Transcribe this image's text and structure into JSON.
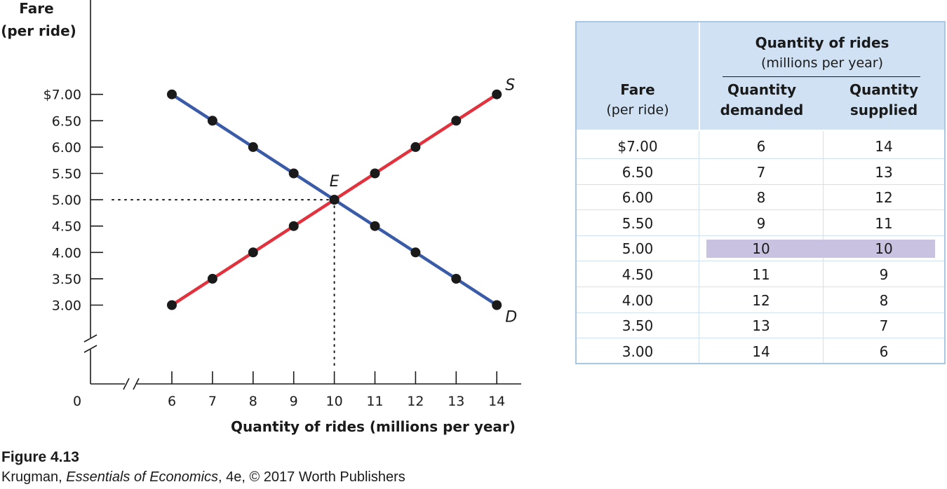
{
  "chart_data": {
    "type": "line",
    "ylabel": [
      "Fare",
      "(per ride)"
    ],
    "xlabel": "Quantity of rides (millions per year)",
    "origin_label": "0",
    "xlim": [
      6,
      14
    ],
    "ylim": [
      3,
      7
    ],
    "x_ticks": [
      6,
      7,
      8,
      9,
      10,
      11,
      12,
      13,
      14
    ],
    "x_tick_labels": [
      "6",
      "7",
      "8",
      "9",
      "10",
      "11",
      "12",
      "13",
      "14"
    ],
    "y_ticks": [
      7.0,
      6.5,
      6.0,
      5.5,
      5.0,
      4.5,
      4.0,
      3.5,
      3.0
    ],
    "y_tick_labels": [
      "$7.00",
      "6.50",
      "6.00",
      "5.50",
      "5.00",
      "4.50",
      "4.00",
      "3.50",
      "3.00"
    ],
    "axis_breaks": true,
    "series": [
      {
        "name": "D",
        "color": "#3a5ba8",
        "x": [
          6,
          7,
          8,
          9,
          10,
          11,
          12,
          13,
          14
        ],
        "y": [
          7.0,
          6.5,
          6.0,
          5.5,
          5.0,
          4.5,
          4.0,
          3.5,
          3.0
        ]
      },
      {
        "name": "S",
        "color": "#e2323e",
        "x": [
          6,
          7,
          8,
          9,
          10,
          11,
          12,
          13,
          14
        ],
        "y": [
          3.0,
          3.5,
          4.0,
          4.5,
          5.0,
          5.5,
          6.0,
          6.5,
          7.0
        ]
      }
    ],
    "equilibrium": {
      "label": "E",
      "x": 10,
      "y": 5.0
    }
  },
  "table": {
    "col1_header": [
      "Fare",
      "(per ride)"
    ],
    "group_header": [
      "Quantity of rides",
      "(millions per year)"
    ],
    "col2_header": [
      "Quantity",
      "demanded"
    ],
    "col3_header": [
      "Quantity",
      "supplied"
    ],
    "highlight_row": 4,
    "rows": [
      {
        "fare": "$7.00",
        "demanded": "6",
        "supplied": "14"
      },
      {
        "fare": "6.50",
        "demanded": "7",
        "supplied": "13"
      },
      {
        "fare": "6.00",
        "demanded": "8",
        "supplied": "12"
      },
      {
        "fare": "5.50",
        "demanded": "9",
        "supplied": "11"
      },
      {
        "fare": "5.00",
        "demanded": "10",
        "supplied": "10"
      },
      {
        "fare": "4.50",
        "demanded": "11",
        "supplied": "9"
      },
      {
        "fare": "4.00",
        "demanded": "12",
        "supplied": "8"
      },
      {
        "fare": "3.50",
        "demanded": "13",
        "supplied": "7"
      },
      {
        "fare": "3.00",
        "demanded": "14",
        "supplied": "6"
      }
    ]
  },
  "caption": {
    "title": "Figure 4.13",
    "credit_prefix": "Krugman, ",
    "credit_book": "Essentials of Economics",
    "credit_suffix": ", 4e, © 2017 Worth Publishers"
  }
}
